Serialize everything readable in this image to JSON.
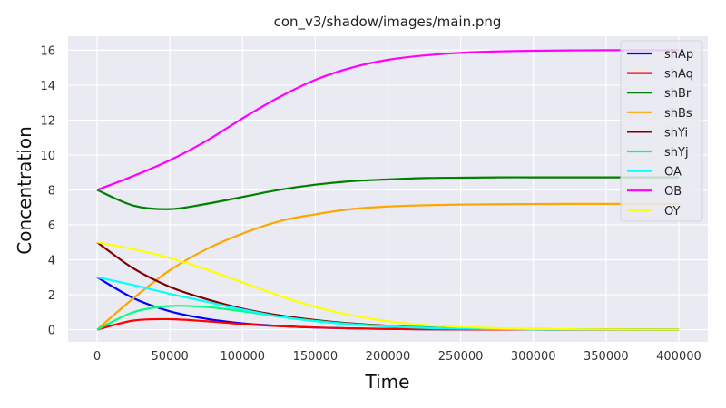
{
  "chart_data": {
    "type": "line",
    "title": "con_v3/shadow/images/main.png",
    "xlabel": "Time",
    "ylabel": "Concentration",
    "xlim": [
      -20000,
      420000
    ],
    "ylim": [
      -0.7,
      16.8
    ],
    "xticks": [
      0,
      50000,
      100000,
      150000,
      200000,
      250000,
      300000,
      350000,
      400000
    ],
    "xtick_labels": [
      "0",
      "50000",
      "100000",
      "150000",
      "200000",
      "250000",
      "300000",
      "350000",
      "400000"
    ],
    "yticks": [
      0,
      2,
      4,
      6,
      8,
      10,
      12,
      14,
      16
    ],
    "ytick_labels": [
      "0",
      "2",
      "4",
      "6",
      "8",
      "10",
      "12",
      "14",
      "16"
    ],
    "grid": true,
    "legend_position": "top-right",
    "x": [
      0,
      25000,
      50000,
      75000,
      100000,
      125000,
      150000,
      175000,
      200000,
      225000,
      250000,
      275000,
      300000,
      325000,
      350000,
      375000,
      400000
    ],
    "series": [
      {
        "name": "shAp",
        "color": "#0000ff",
        "values": [
          3.0,
          1.8,
          1.05,
          0.62,
          0.36,
          0.21,
          0.12,
          0.07,
          0.04,
          0.02,
          0.01,
          0.006,
          0.003,
          0.002,
          0.001,
          0.0,
          0.0
        ]
      },
      {
        "name": "shAq",
        "color": "#ff0000",
        "values": [
          0.0,
          0.52,
          0.6,
          0.48,
          0.32,
          0.2,
          0.12,
          0.07,
          0.04,
          0.02,
          0.01,
          0.006,
          0.003,
          0.002,
          0.001,
          0.0,
          0.0
        ]
      },
      {
        "name": "shBr",
        "color": "#008000",
        "values": [
          8.0,
          7.1,
          6.9,
          7.2,
          7.6,
          8.0,
          8.3,
          8.5,
          8.6,
          8.68,
          8.7,
          8.72,
          8.72,
          8.72,
          8.72,
          8.72,
          8.72
        ]
      },
      {
        "name": "shBs",
        "color": "#ffa500",
        "values": [
          0.0,
          1.8,
          3.4,
          4.6,
          5.5,
          6.2,
          6.6,
          6.9,
          7.05,
          7.12,
          7.16,
          7.18,
          7.19,
          7.2,
          7.2,
          7.2,
          7.2
        ]
      },
      {
        "name": "shYi",
        "color": "#800000",
        "values": [
          5.0,
          3.5,
          2.45,
          1.75,
          1.2,
          0.82,
          0.55,
          0.35,
          0.22,
          0.13,
          0.08,
          0.05,
          0.03,
          0.02,
          0.01,
          0.005,
          0.0
        ]
      },
      {
        "name": "shYj",
        "color": "#00ff7f",
        "values": [
          0.0,
          1.0,
          1.35,
          1.3,
          1.05,
          0.75,
          0.5,
          0.32,
          0.2,
          0.12,
          0.07,
          0.04,
          0.02,
          0.01,
          0.005,
          0.0,
          0.0
        ]
      },
      {
        "name": "OA",
        "color": "#00ffff",
        "values": [
          3.0,
          2.55,
          2.05,
          1.6,
          1.15,
          0.75,
          0.48,
          0.3,
          0.18,
          0.1,
          0.06,
          0.03,
          0.02,
          0.01,
          0.005,
          0.0,
          0.0
        ]
      },
      {
        "name": "OB",
        "color": "#ff00ff",
        "values": [
          8.0,
          8.8,
          9.7,
          10.8,
          12.1,
          13.3,
          14.3,
          15.0,
          15.45,
          15.7,
          15.85,
          15.93,
          15.97,
          15.99,
          16.0,
          16.0,
          16.0
        ]
      },
      {
        "name": "OY",
        "color": "#ffff00",
        "values": [
          5.0,
          4.6,
          4.1,
          3.45,
          2.7,
          1.95,
          1.3,
          0.82,
          0.48,
          0.27,
          0.15,
          0.08,
          0.04,
          0.02,
          0.01,
          0.005,
          0.0
        ]
      }
    ]
  }
}
